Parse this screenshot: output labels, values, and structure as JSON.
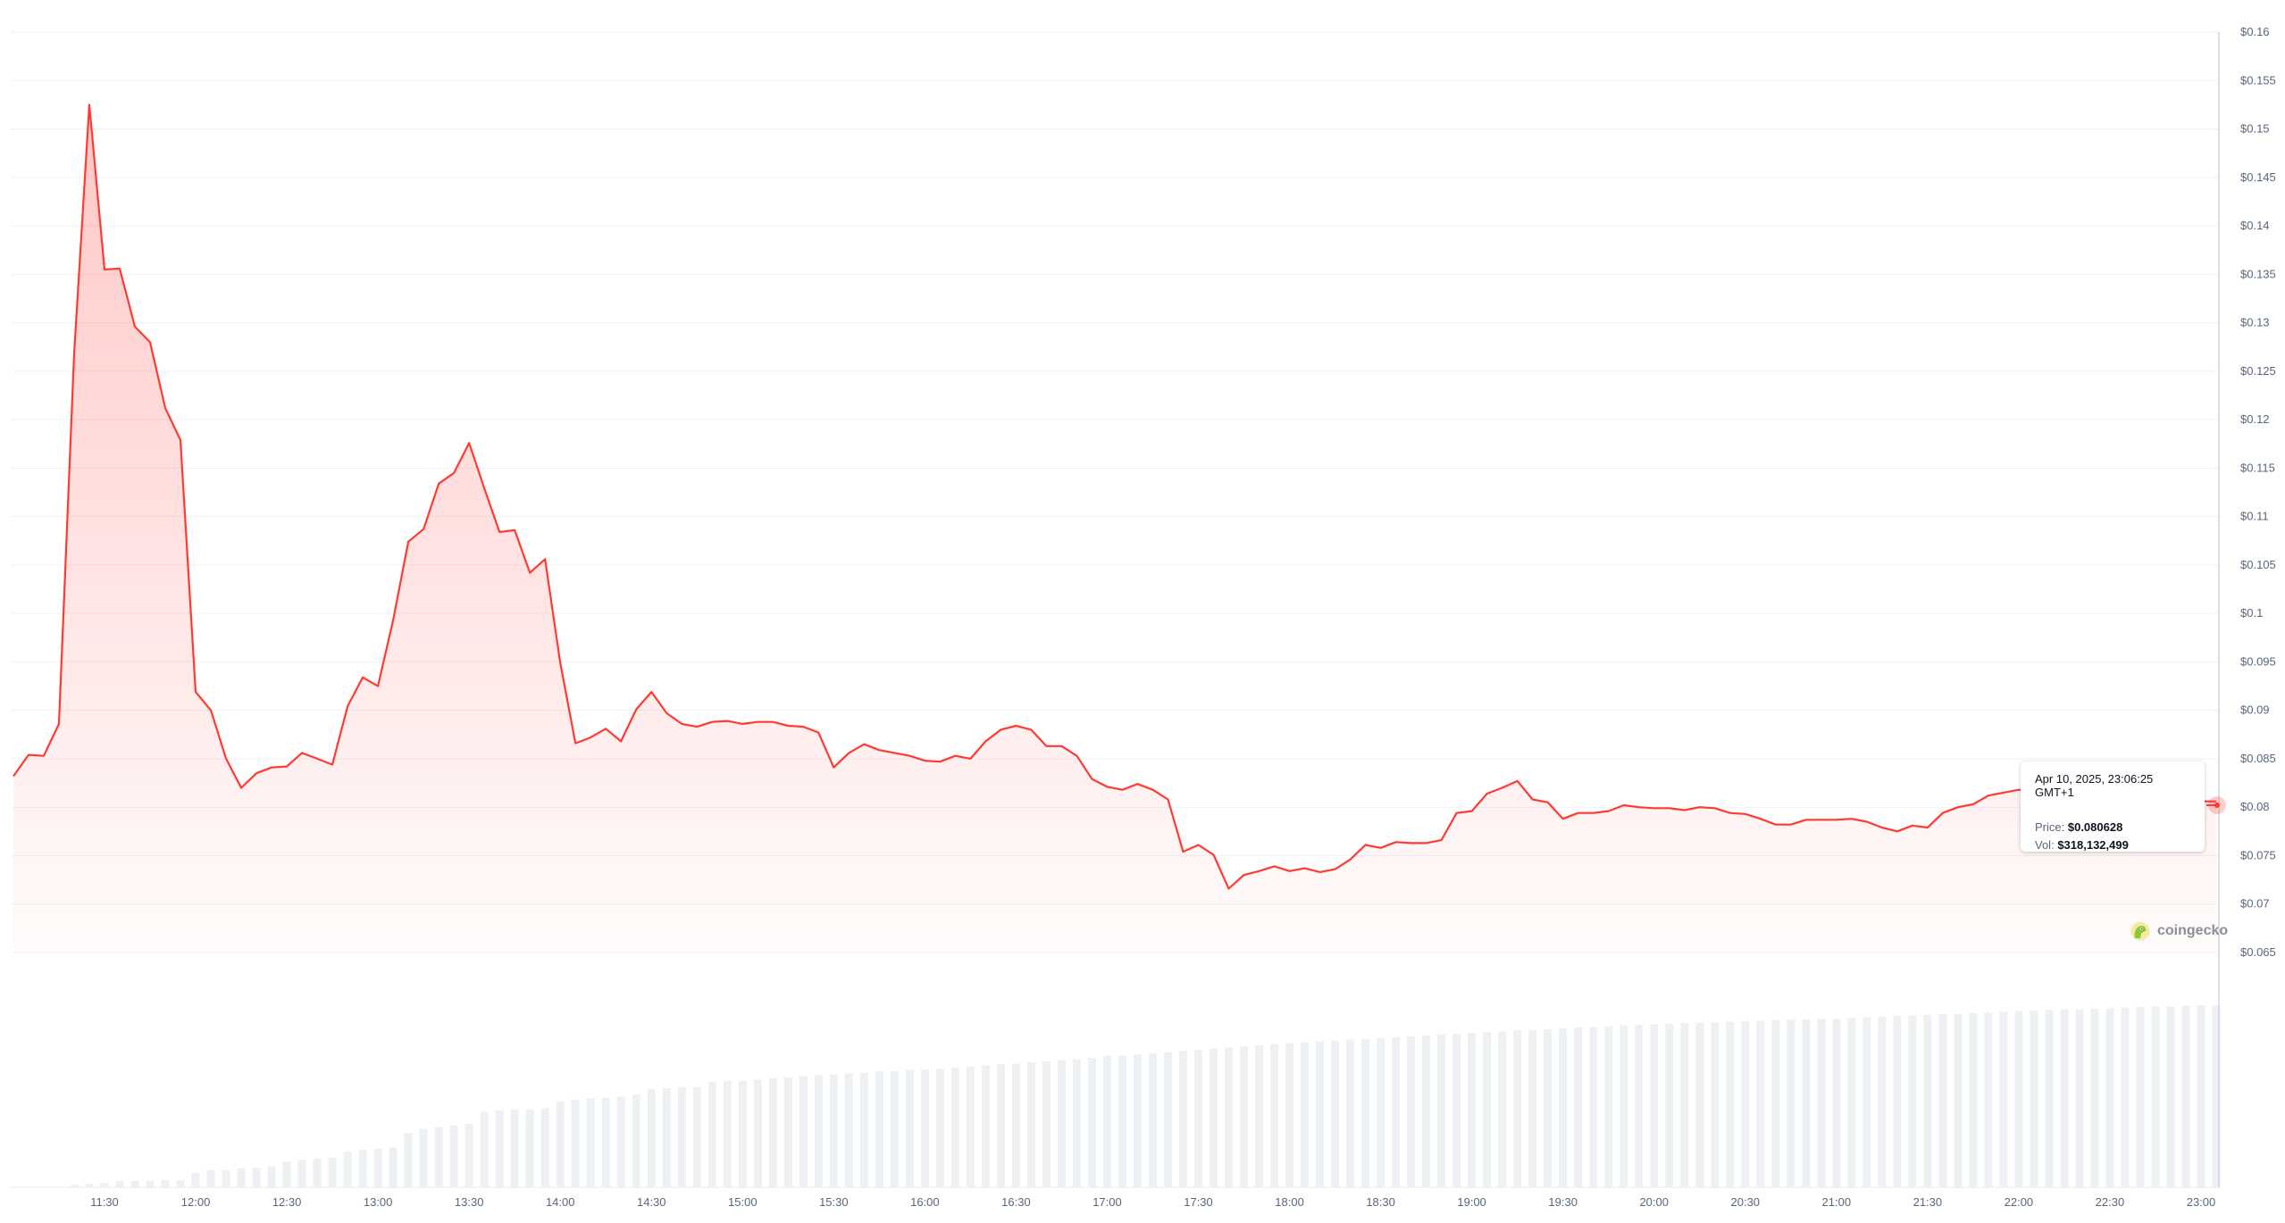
{
  "chart_data": {
    "type": "line",
    "title": "",
    "xlabel": "",
    "ylabel": "",
    "line_color": "#ff3a33",
    "volume_color": "#eef1f4",
    "grid": true,
    "ylim": [
      0.065,
      0.16
    ],
    "yticks": [
      "$0.16",
      "$0.155",
      "$0.15",
      "$0.145",
      "$0.14",
      "$0.135",
      "$0.13",
      "$0.125",
      "$0.12",
      "$0.115",
      "$0.11",
      "$0.105",
      "$0.1",
      "$0.095",
      "$0.09",
      "$0.085",
      "$0.08",
      "$0.075",
      "$0.07",
      "$0.065"
    ],
    "ytick_values": [
      0.16,
      0.155,
      0.15,
      0.145,
      0.14,
      0.135,
      0.13,
      0.125,
      0.12,
      0.115,
      0.11,
      0.105,
      0.1,
      0.095,
      0.09,
      0.085,
      0.08,
      0.075,
      0.07,
      0.065
    ],
    "xticks": [
      "11:30",
      "12:00",
      "12:30",
      "13:00",
      "13:30",
      "14:00",
      "14:30",
      "15:00",
      "15:30",
      "16:00",
      "16:30",
      "17:00",
      "17:30",
      "18:00",
      "18:30",
      "19:00",
      "19:30",
      "20:00",
      "20:30",
      "21:00",
      "21:30",
      "22:00",
      "22:30",
      "23:00"
    ],
    "x": [
      "11:00",
      "11:05",
      "11:10",
      "11:15",
      "11:20",
      "11:25",
      "11:30",
      "11:35",
      "11:40",
      "11:45",
      "11:50",
      "11:55",
      "12:00",
      "12:05",
      "12:10",
      "12:15",
      "12:20",
      "12:25",
      "12:30",
      "12:35",
      "12:40",
      "12:45",
      "12:50",
      "12:55",
      "13:00",
      "13:05",
      "13:10",
      "13:15",
      "13:20",
      "13:25",
      "13:30",
      "13:35",
      "13:40",
      "13:45",
      "13:50",
      "13:55",
      "14:00",
      "14:05",
      "14:10",
      "14:15",
      "14:20",
      "14:25",
      "14:30",
      "14:35",
      "14:40",
      "14:45",
      "14:50",
      "14:55",
      "15:00",
      "15:05",
      "15:10",
      "15:15",
      "15:20",
      "15:25",
      "15:30",
      "15:35",
      "15:40",
      "15:45",
      "15:50",
      "15:55",
      "16:00",
      "16:05",
      "16:10",
      "16:15",
      "16:20",
      "16:25",
      "16:30",
      "16:35",
      "16:40",
      "16:45",
      "16:50",
      "16:55",
      "17:00",
      "17:05",
      "17:10",
      "17:15",
      "17:20",
      "17:25",
      "17:30",
      "17:35",
      "17:40",
      "17:45",
      "17:50",
      "17:55",
      "18:00",
      "18:05",
      "18:10",
      "18:15",
      "18:20",
      "18:25",
      "18:30",
      "18:35",
      "18:40",
      "18:45",
      "18:50",
      "18:55",
      "19:00",
      "19:05",
      "19:10",
      "19:15",
      "19:20",
      "19:25",
      "19:30",
      "19:35",
      "19:40",
      "19:45",
      "19:50",
      "19:55",
      "20:00",
      "20:05",
      "20:10",
      "20:15",
      "20:20",
      "20:25",
      "20:30",
      "20:35",
      "20:40",
      "20:45",
      "20:50",
      "20:55",
      "21:00",
      "21:05",
      "21:10",
      "21:15",
      "21:20",
      "21:25",
      "21:30",
      "21:35",
      "21:40",
      "21:45",
      "21:50",
      "21:55",
      "22:00",
      "22:05",
      "22:10",
      "22:15",
      "22:20",
      "22:25",
      "22:30",
      "22:35",
      "22:40",
      "22:45",
      "22:50",
      "22:55",
      "23:00",
      "23:05"
    ],
    "price": [
      0.0832,
      0.0854,
      0.0853,
      0.0886,
      0.1268,
      0.1525,
      0.1355,
      0.1356,
      0.1296,
      0.128,
      0.1212,
      0.1179,
      0.0919,
      0.09,
      0.085,
      0.082,
      0.0835,
      0.0841,
      0.0842,
      0.0856,
      0.085,
      0.0844,
      0.0904,
      0.0934,
      0.0925,
      0.0993,
      0.1074,
      0.1087,
      0.1134,
      0.1145,
      0.1176,
      0.1129,
      0.1084,
      0.1086,
      0.1042,
      0.1056,
      0.0949,
      0.0866,
      0.0872,
      0.0881,
      0.0868,
      0.0901,
      0.0919,
      0.0897,
      0.0886,
      0.0883,
      0.0888,
      0.0889,
      0.0886,
      0.0888,
      0.0888,
      0.0884,
      0.0883,
      0.0877,
      0.0841,
      0.0856,
      0.0865,
      0.0859,
      0.0856,
      0.0853,
      0.0848,
      0.0847,
      0.0853,
      0.085,
      0.0868,
      0.088,
      0.0884,
      0.088,
      0.0863,
      0.0863,
      0.0853,
      0.0829,
      0.0821,
      0.0818,
      0.0824,
      0.0818,
      0.0808,
      0.0754,
      0.0761,
      0.0751,
      0.0716,
      0.073,
      0.0734,
      0.0739,
      0.0734,
      0.0737,
      0.0733,
      0.0736,
      0.0746,
      0.0761,
      0.0758,
      0.0764,
      0.0763,
      0.0763,
      0.0766,
      0.0794,
      0.0796,
      0.0814,
      0.082,
      0.0827,
      0.0808,
      0.0805,
      0.0788,
      0.0794,
      0.0794,
      0.0796,
      0.0802,
      0.08,
      0.0799,
      0.0799,
      0.0797,
      0.08,
      0.0799,
      0.0794,
      0.0793,
      0.0788,
      0.0782,
      0.0782,
      0.0787,
      0.0787,
      0.0787,
      0.0788,
      0.0785,
      0.0779,
      0.0775,
      0.0781,
      0.0779,
      0.0794,
      0.08,
      0.0803,
      0.0812,
      0.0815,
      0.0818,
      0.0816,
      0.0812,
      0.081,
      0.0808,
      0.0809,
      0.0811,
      0.081,
      0.0808,
      0.0807,
      0.0806,
      0.0808,
      0.0806,
      0.0806
    ],
    "volume_usd_millions": [
      0,
      0,
      0,
      0,
      4.7,
      6.3,
      7.8,
      11,
      11,
      11,
      12.5,
      12.5,
      25,
      30,
      30,
      33,
      34,
      36,
      45,
      48,
      50,
      52,
      62,
      66,
      67,
      70,
      95,
      102,
      105,
      108,
      111,
      132,
      135,
      136,
      136,
      138,
      150,
      153,
      155,
      156,
      158,
      162,
      172,
      173,
      175,
      175,
      184,
      186,
      186,
      188,
      191,
      192,
      194,
      196,
      197,
      199,
      200,
      202,
      203,
      205,
      206,
      207,
      209,
      211,
      213,
      215,
      216,
      218,
      220,
      222,
      224,
      226,
      229,
      230,
      232,
      234,
      236,
      238,
      240,
      242,
      244,
      246,
      248,
      250,
      252,
      253,
      255,
      256,
      258,
      259,
      261,
      262,
      264,
      265,
      267,
      268,
      270,
      271,
      272,
      274,
      275,
      276,
      277,
      279,
      280,
      281,
      283,
      284,
      285,
      286,
      287,
      287,
      288,
      289,
      290,
      291,
      292,
      293,
      293,
      294,
      295,
      296,
      297,
      298,
      299,
      300,
      301,
      302,
      303,
      304,
      305,
      306,
      308,
      309,
      310,
      311,
      311,
      312,
      313,
      314,
      315,
      316,
      316,
      317,
      318,
      318
    ]
  },
  "tooltip": {
    "date": "Apr 10, 2025, 23:06:25 GMT+1",
    "price_label": "Price:",
    "price_value": "$0.080628",
    "vol_label": "Vol:",
    "vol_value": "$318,132,499"
  },
  "watermark": {
    "text": "coingecko",
    "icon": "coingecko-gecko-icon"
  }
}
